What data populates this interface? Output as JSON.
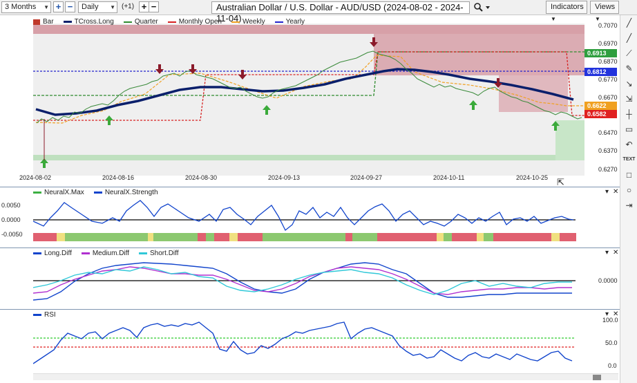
{
  "toolbar": {
    "range_value": "3 Months",
    "interval_value": "Daily",
    "offset_label": "(+1)",
    "plus_label": "+",
    "minus_label": "−",
    "title": "Australian Dollar / U.S. Dollar - AUD/USD (2024-08-02 - 2024-11-04)",
    "indicators_label": "Indicators",
    "views_label": "Views",
    "search_icon": "search-icon"
  },
  "main_legend": [
    {
      "label": "Bar",
      "color": "#c0392b",
      "style": "bar"
    },
    {
      "label": "TCross.Long",
      "color": "#0a1f6b",
      "style": "solid"
    },
    {
      "label": "Quarter",
      "color": "#2e8b2e",
      "style": "dash"
    },
    {
      "label": "Monthly Open",
      "color": "#d62020",
      "style": "dash"
    },
    {
      "label": "Weekly",
      "color": "#f0a020",
      "style": "dash"
    },
    {
      "label": "Yearly",
      "color": "#2222cc",
      "style": "dash"
    }
  ],
  "price_axis": [
    "0.7070",
    "0.6970",
    "0.6870",
    "0.6770",
    "0.6670",
    "0.6470",
    "0.6370",
    "0.6270"
  ],
  "price_tags": [
    {
      "value": "0.6913",
      "color": "#2e9e3e"
    },
    {
      "value": "0.6812",
      "color": "#2233dd"
    },
    {
      "value": "0.6622",
      "color": "#f0a020"
    },
    {
      "value": "0.6582",
      "color": "#e02020"
    }
  ],
  "dates": [
    "2024-08-02",
    "2024-08-16",
    "2024-08-30",
    "2024-09-13",
    "2024-09-27",
    "2024-10-11",
    "2024-10-25"
  ],
  "neural_legend": [
    {
      "label": "NeuralX.Max",
      "color": "#3cb043"
    },
    {
      "label": "NeuralX.Strength",
      "color": "#1144cc"
    }
  ],
  "neural_axis": [
    "0.0050",
    "0.0000",
    "-0.0050"
  ],
  "diff_legend": [
    {
      "label": "Long.Diff",
      "color": "#1144cc"
    },
    {
      "label": "Medium.Diff",
      "color": "#b030d0"
    },
    {
      "label": "Short.Diff",
      "color": "#30c8d8"
    }
  ],
  "diff_axis": [
    "0.0000"
  ],
  "rsi_legend": [
    {
      "label": "RSI",
      "color": "#1144cc"
    }
  ],
  "rsi_axis": [
    "100.0",
    "50.0",
    "0.0"
  ],
  "panel_controls": {
    "collapse": "▾",
    "close": "✕"
  },
  "sidebar_tools": [
    "line-tool-icon",
    "horizontal-line-icon",
    "ray-icon",
    "pencil-icon",
    "arrow-icon",
    "measure-icon",
    "crosshair-icon",
    "note-icon",
    "undo-icon",
    "text-icon",
    "rectangle-icon",
    "circle-icon",
    "arrow-right-icon"
  ]
}
